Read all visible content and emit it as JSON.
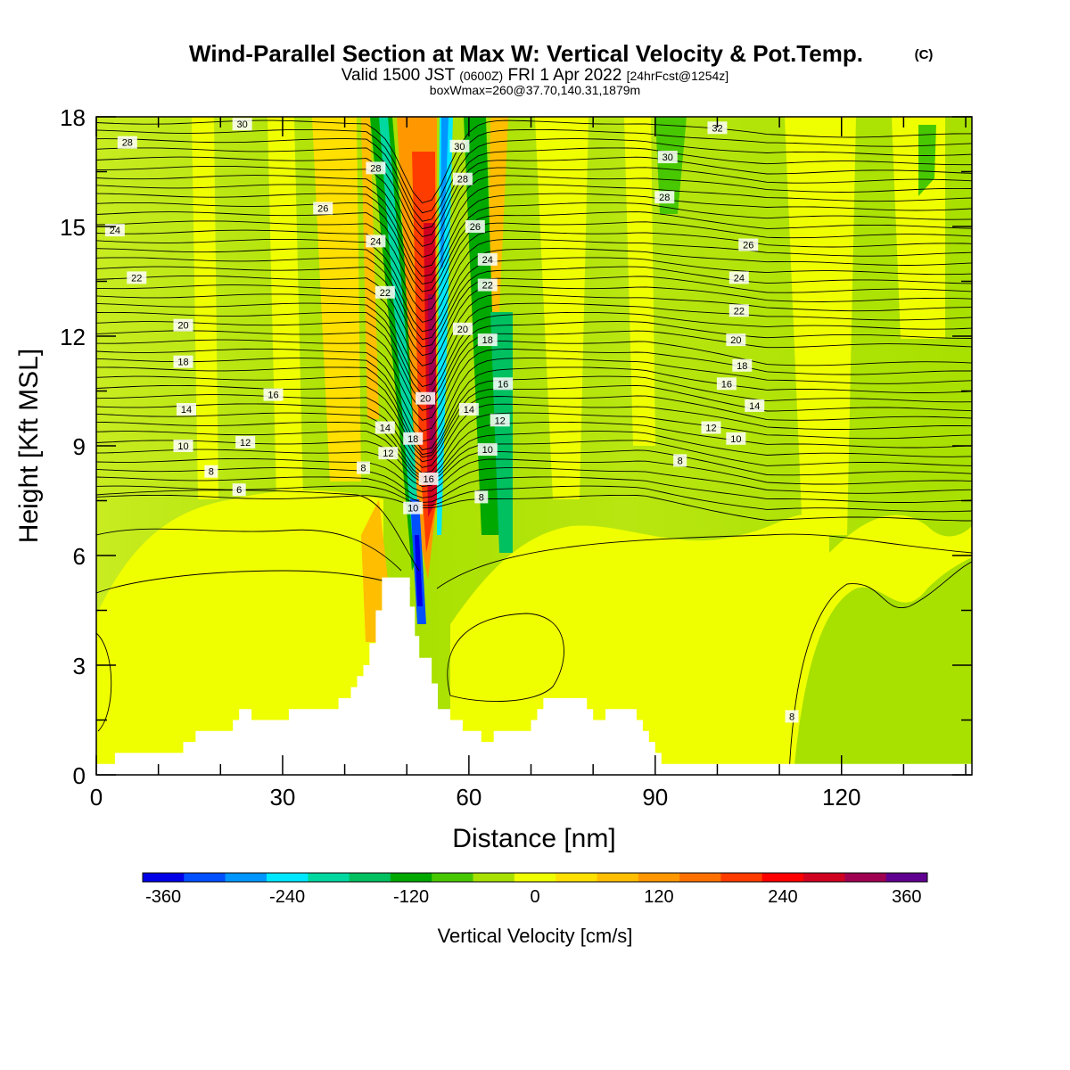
{
  "chart_data": {
    "type": "heatmap",
    "title": "Wind-Parallel Section at Max W: Vertical Velocity & Pot.Temp.",
    "title_mark": "(C)",
    "subtitle_main": "Valid 1500 JST",
    "subtitle_utc": "(0600Z)",
    "subtitle_date": "FRI 1 Apr 2022",
    "subtitle_fcst": "[24hrFcst@1254z]",
    "subtitle2": "boxWmax=260@37.70,140.31,1879m",
    "xlabel": "Distance [nm]",
    "ylabel": "Height [Kft MSL]",
    "xlim": [
      0,
      141
    ],
    "ylim": [
      0,
      18
    ],
    "x_ticks": [
      0,
      30,
      60,
      90,
      120
    ],
    "y_ticks": [
      0,
      3,
      6,
      9,
      12,
      15,
      18
    ],
    "colorbar": {
      "label": "Vertical Velocity [cm/s]",
      "ticks": [
        -360,
        -240,
        -120,
        0,
        120,
        240,
        360
      ],
      "colors": [
        "#0000e8",
        "#0050ff",
        "#0096ff",
        "#00e8ff",
        "#00d8a0",
        "#00c060",
        "#00a800",
        "#48c800",
        "#a8e000",
        "#f0ff00",
        "#ffe000",
        "#ffbe00",
        "#ff9800",
        "#ff7000",
        "#ff3c00",
        "#ff0000",
        "#d00020",
        "#a00050",
        "#600090"
      ]
    },
    "terrain_kft": [
      [
        0,
        0.3
      ],
      [
        3,
        0.3
      ],
      [
        3,
        0.6
      ],
      [
        14,
        0.6
      ],
      [
        14,
        0.9
      ],
      [
        16,
        0.9
      ],
      [
        16,
        1.2
      ],
      [
        22,
        1.2
      ],
      [
        22,
        1.5
      ],
      [
        23,
        1.5
      ],
      [
        23,
        1.8
      ],
      [
        25,
        1.8
      ],
      [
        25,
        1.5
      ],
      [
        31,
        1.5
      ],
      [
        31,
        1.8
      ],
      [
        39,
        1.8
      ],
      [
        39,
        2.1
      ],
      [
        41,
        2.1
      ],
      [
        41,
        2.4
      ],
      [
        42,
        2.4
      ],
      [
        42,
        2.7
      ],
      [
        43,
        2.7
      ],
      [
        43,
        3.0
      ],
      [
        44,
        3.0
      ],
      [
        44,
        3.6
      ],
      [
        45,
        3.6
      ],
      [
        45,
        4.5
      ],
      [
        46,
        4.5
      ],
      [
        46,
        5.4
      ],
      [
        50.5,
        5.4
      ],
      [
        50.5,
        4.6
      ],
      [
        51.3,
        4.6
      ],
      [
        51.3,
        3.8
      ],
      [
        52,
        3.8
      ],
      [
        52,
        3.2
      ],
      [
        54,
        3.2
      ],
      [
        54,
        2.5
      ],
      [
        55,
        2.5
      ],
      [
        55,
        1.8
      ],
      [
        57,
        1.8
      ],
      [
        57,
        1.5
      ],
      [
        59,
        1.5
      ],
      [
        59,
        1.2
      ],
      [
        62,
        1.2
      ],
      [
        62,
        0.9
      ],
      [
        64,
        0.9
      ],
      [
        64,
        1.2
      ],
      [
        70,
        1.2
      ],
      [
        70,
        1.5
      ],
      [
        71,
        1.5
      ],
      [
        71,
        1.8
      ],
      [
        72,
        1.8
      ],
      [
        72,
        2.1
      ],
      [
        79,
        2.1
      ],
      [
        79,
        1.8
      ],
      [
        80,
        1.8
      ],
      [
        80,
        1.5
      ],
      [
        82,
        1.5
      ],
      [
        82,
        1.8
      ],
      [
        87,
        1.8
      ],
      [
        87,
        1.5
      ],
      [
        88,
        1.5
      ],
      [
        88,
        1.2
      ],
      [
        89,
        1.2
      ],
      [
        89,
        0.9
      ],
      [
        90,
        0.9
      ],
      [
        90,
        0.6
      ],
      [
        91,
        0.6
      ],
      [
        91,
        0.3
      ],
      [
        141,
        0.3
      ]
    ],
    "potential_temperature_labels": [
      {
        "x": 23,
        "y": 7.8,
        "value": "6"
      },
      {
        "x": 18.5,
        "y": 8.3,
        "value": "8"
      },
      {
        "x": 43,
        "y": 8.4,
        "value": "8"
      },
      {
        "x": 62,
        "y": 7.6,
        "value": "8"
      },
      {
        "x": 94,
        "y": 8.6,
        "value": "8"
      },
      {
        "x": 112,
        "y": 1.6,
        "value": "8"
      },
      {
        "x": 14,
        "y": 9.0,
        "value": "10"
      },
      {
        "x": 51,
        "y": 7.3,
        "value": "10"
      },
      {
        "x": 63,
        "y": 8.9,
        "value": "10"
      },
      {
        "x": 103,
        "y": 9.2,
        "value": "10"
      },
      {
        "x": 24,
        "y": 9.1,
        "value": "12"
      },
      {
        "x": 47,
        "y": 8.8,
        "value": "12"
      },
      {
        "x": 65,
        "y": 9.7,
        "value": "12"
      },
      {
        "x": 99,
        "y": 9.5,
        "value": "12"
      },
      {
        "x": 14.5,
        "y": 10.0,
        "value": "14"
      },
      {
        "x": 46.5,
        "y": 9.5,
        "value": "14"
      },
      {
        "x": 60,
        "y": 10.0,
        "value": "14"
      },
      {
        "x": 106,
        "y": 10.1,
        "value": "14"
      },
      {
        "x": 28.5,
        "y": 10.4,
        "value": "16"
      },
      {
        "x": 53.5,
        "y": 8.1,
        "value": "16"
      },
      {
        "x": 65.5,
        "y": 10.7,
        "value": "16"
      },
      {
        "x": 101.5,
        "y": 10.7,
        "value": "16"
      },
      {
        "x": 14,
        "y": 11.3,
        "value": "18"
      },
      {
        "x": 51,
        "y": 9.2,
        "value": "18"
      },
      {
        "x": 63,
        "y": 11.9,
        "value": "18"
      },
      {
        "x": 104,
        "y": 11.2,
        "value": "18"
      },
      {
        "x": 14,
        "y": 12.3,
        "value": "20"
      },
      {
        "x": 53,
        "y": 10.3,
        "value": "20"
      },
      {
        "x": 59,
        "y": 12.2,
        "value": "20"
      },
      {
        "x": 103,
        "y": 11.9,
        "value": "20"
      },
      {
        "x": 6.5,
        "y": 13.6,
        "value": "22"
      },
      {
        "x": 46.5,
        "y": 13.2,
        "value": "22"
      },
      {
        "x": 63,
        "y": 13.4,
        "value": "22"
      },
      {
        "x": 103.5,
        "y": 12.7,
        "value": "22"
      },
      {
        "x": 3,
        "y": 14.9,
        "value": "24"
      },
      {
        "x": 45,
        "y": 14.6,
        "value": "24"
      },
      {
        "x": 63,
        "y": 14.1,
        "value": "24"
      },
      {
        "x": 103.5,
        "y": 13.6,
        "value": "24"
      },
      {
        "x": 36.5,
        "y": 15.5,
        "value": "26"
      },
      {
        "x": 61,
        "y": 15.0,
        "value": "26"
      },
      {
        "x": 105,
        "y": 14.5,
        "value": "26"
      },
      {
        "x": 5,
        "y": 17.3,
        "value": "28"
      },
      {
        "x": 45,
        "y": 16.6,
        "value": "28"
      },
      {
        "x": 59,
        "y": 16.3,
        "value": "28"
      },
      {
        "x": 91.5,
        "y": 15.8,
        "value": "28"
      },
      {
        "x": 23.5,
        "y": 17.8,
        "value": "30"
      },
      {
        "x": 58.5,
        "y": 17.2,
        "value": "30"
      },
      {
        "x": 92,
        "y": 16.9,
        "value": "30"
      },
      {
        "x": 100,
        "y": 17.7,
        "value": "32"
      }
    ]
  }
}
